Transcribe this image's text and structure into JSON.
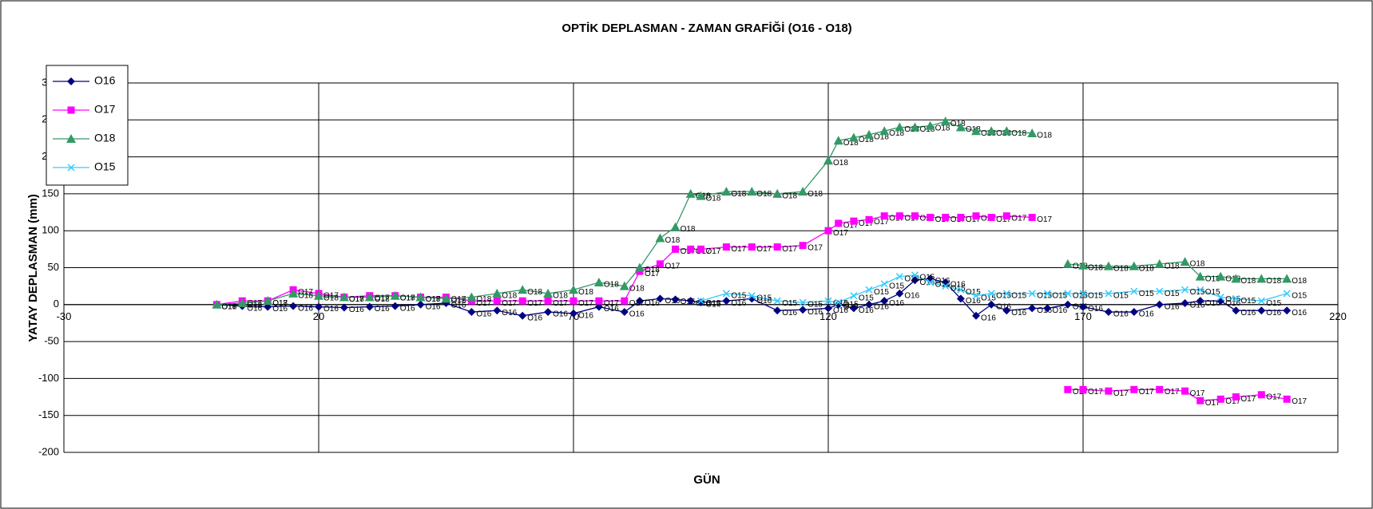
{
  "chart_data": {
    "type": "line",
    "title": "OPTİK DEPLASMAN - ZAMAN GRAFİĞİ (O16 - O18)",
    "x_label": "GÜN",
    "y_label": "YATAY DEPLASMAN (mm)",
    "x": [
      0,
      5,
      10,
      15,
      20,
      25,
      30,
      35,
      40,
      45,
      50,
      55,
      60,
      65,
      70,
      75,
      80,
      83,
      87,
      90,
      93,
      95,
      100,
      105,
      110,
      115,
      120,
      122,
      125,
      128,
      131,
      134,
      137,
      140,
      143,
      146,
      149,
      152,
      155,
      160,
      163,
      167,
      170,
      175,
      180,
      185,
      190,
      193,
      197,
      200,
      205,
      210
    ],
    "series": [
      {
        "name": "O16",
        "color": "#000080",
        "marker": "diamond",
        "values": [
          0,
          -2,
          -3,
          -2,
          -3,
          -4,
          -3,
          -2,
          0,
          2,
          -10,
          -8,
          -15,
          -10,
          -12,
          -3,
          -10,
          5,
          8,
          7,
          5,
          3,
          5,
          8,
          -8,
          -7,
          -5,
          0,
          -5,
          0,
          5,
          15,
          33,
          35,
          30,
          8,
          -15,
          0,
          -8,
          -5,
          -5,
          0,
          -3,
          -10,
          -10,
          0,
          2,
          5,
          5,
          -8,
          -8,
          -8
        ]
      },
      {
        "name": "O17",
        "color": "#ff00ff",
        "marker": "square",
        "values": [
          0,
          5,
          5,
          20,
          15,
          10,
          12,
          12,
          10,
          10,
          5,
          5,
          5,
          5,
          5,
          5,
          5,
          45,
          55,
          75,
          75,
          75,
          78,
          78,
          78,
          80,
          100,
          110,
          113,
          115,
          120,
          120,
          120,
          118,
          118,
          118,
          120,
          118,
          120,
          118,
          null,
          -115,
          -115,
          -117,
          -115,
          -115,
          -117,
          -130,
          -128,
          -125,
          -122,
          -128
        ]
      },
      {
        "name": "O18",
        "color": "#339966",
        "marker": "triangle",
        "values": [
          0,
          2,
          5,
          15,
          12,
          10,
          10,
          12,
          10,
          8,
          10,
          15,
          20,
          15,
          20,
          30,
          25,
          50,
          90,
          105,
          150,
          147,
          153,
          153,
          150,
          153,
          195,
          222,
          226,
          230,
          235,
          240,
          240,
          242,
          248,
          240,
          235,
          235,
          235,
          232,
          null,
          55,
          53,
          52,
          52,
          55,
          58,
          38,
          38,
          35,
          35,
          35
        ]
      },
      {
        "name": "O15",
        "color": "#33ccff",
        "marker": "x",
        "values": [
          null,
          null,
          null,
          null,
          null,
          null,
          null,
          null,
          null,
          null,
          null,
          null,
          null,
          null,
          null,
          null,
          null,
          null,
          null,
          null,
          null,
          5,
          15,
          12,
          5,
          3,
          5,
          3,
          12,
          20,
          28,
          38,
          40,
          30,
          25,
          20,
          12,
          15,
          15,
          15,
          15,
          15,
          15,
          15,
          18,
          18,
          20,
          20,
          10,
          8,
          5,
          15
        ]
      }
    ],
    "xlim": [
      -30,
      220
    ],
    "xticks": [
      -30,
      20,
      70,
      120,
      170,
      220
    ],
    "ylim": [
      -200,
      300
    ],
    "yticks": [
      -200,
      -150,
      -100,
      -50,
      0,
      50,
      100,
      150,
      200,
      250,
      300
    ],
    "grid": true,
    "legend": "top-left"
  }
}
